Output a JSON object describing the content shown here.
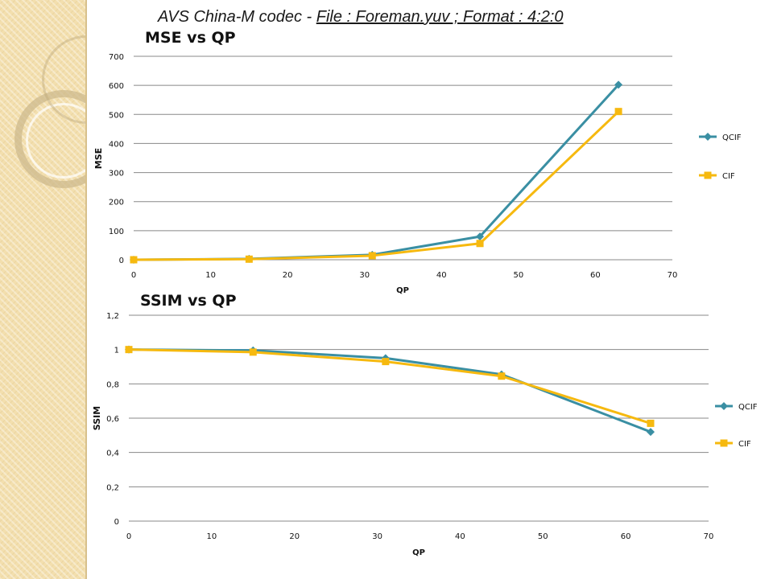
{
  "slide": {
    "title_plain": "AVS China-M codec - ",
    "title_underlined": "File : Foreman.yuv ; Format : 4:2:0"
  },
  "colors": {
    "qcif": "#3a8fa3",
    "cif": "#f6b90f",
    "grid": "#888888",
    "side": "#f3dfae"
  },
  "icons": {
    "qcif_marker": "diamond",
    "cif_marker": "square"
  },
  "chart_data": [
    {
      "type": "line",
      "title": "MSE vs QP",
      "xlabel": "QP",
      "ylabel": "MSE",
      "xlim": [
        0,
        70
      ],
      "ylim": [
        0,
        700
      ],
      "xticks": [
        "0",
        "10",
        "20",
        "30",
        "40",
        "50",
        "60",
        "70"
      ],
      "yticks": [
        "0",
        "100",
        "200",
        "300",
        "400",
        "500",
        "600",
        "700"
      ],
      "grid": true,
      "legend": "right",
      "series": [
        {
          "name": "QCIF",
          "x": [
            0,
            15,
            31,
            45,
            63
          ],
          "y": [
            0,
            3,
            17,
            80,
            602
          ]
        },
        {
          "name": "CIF",
          "x": [
            0,
            15,
            31,
            45,
            63
          ],
          "y": [
            0,
            2,
            14,
            56,
            510
          ]
        }
      ]
    },
    {
      "type": "line",
      "title": "SSIM vs QP",
      "xlabel": "QP",
      "ylabel": "SSIM",
      "xlim": [
        0,
        70
      ],
      "ylim": [
        0,
        1.2
      ],
      "xticks": [
        "0",
        "10",
        "20",
        "30",
        "40",
        "50",
        "60",
        "70"
      ],
      "yticks": [
        "0",
        "0,2",
        "0,4",
        "0,6",
        "0,8",
        "1",
        "1,2"
      ],
      "grid": true,
      "legend": "right",
      "series": [
        {
          "name": "QCIF",
          "x": [
            0,
            15,
            31,
            45,
            63
          ],
          "y": [
            1.0,
            0.995,
            0.95,
            0.855,
            0.52
          ]
        },
        {
          "name": "CIF",
          "x": [
            0,
            15,
            31,
            45,
            63
          ],
          "y": [
            1.0,
            0.985,
            0.93,
            0.845,
            0.57
          ]
        }
      ]
    }
  ]
}
